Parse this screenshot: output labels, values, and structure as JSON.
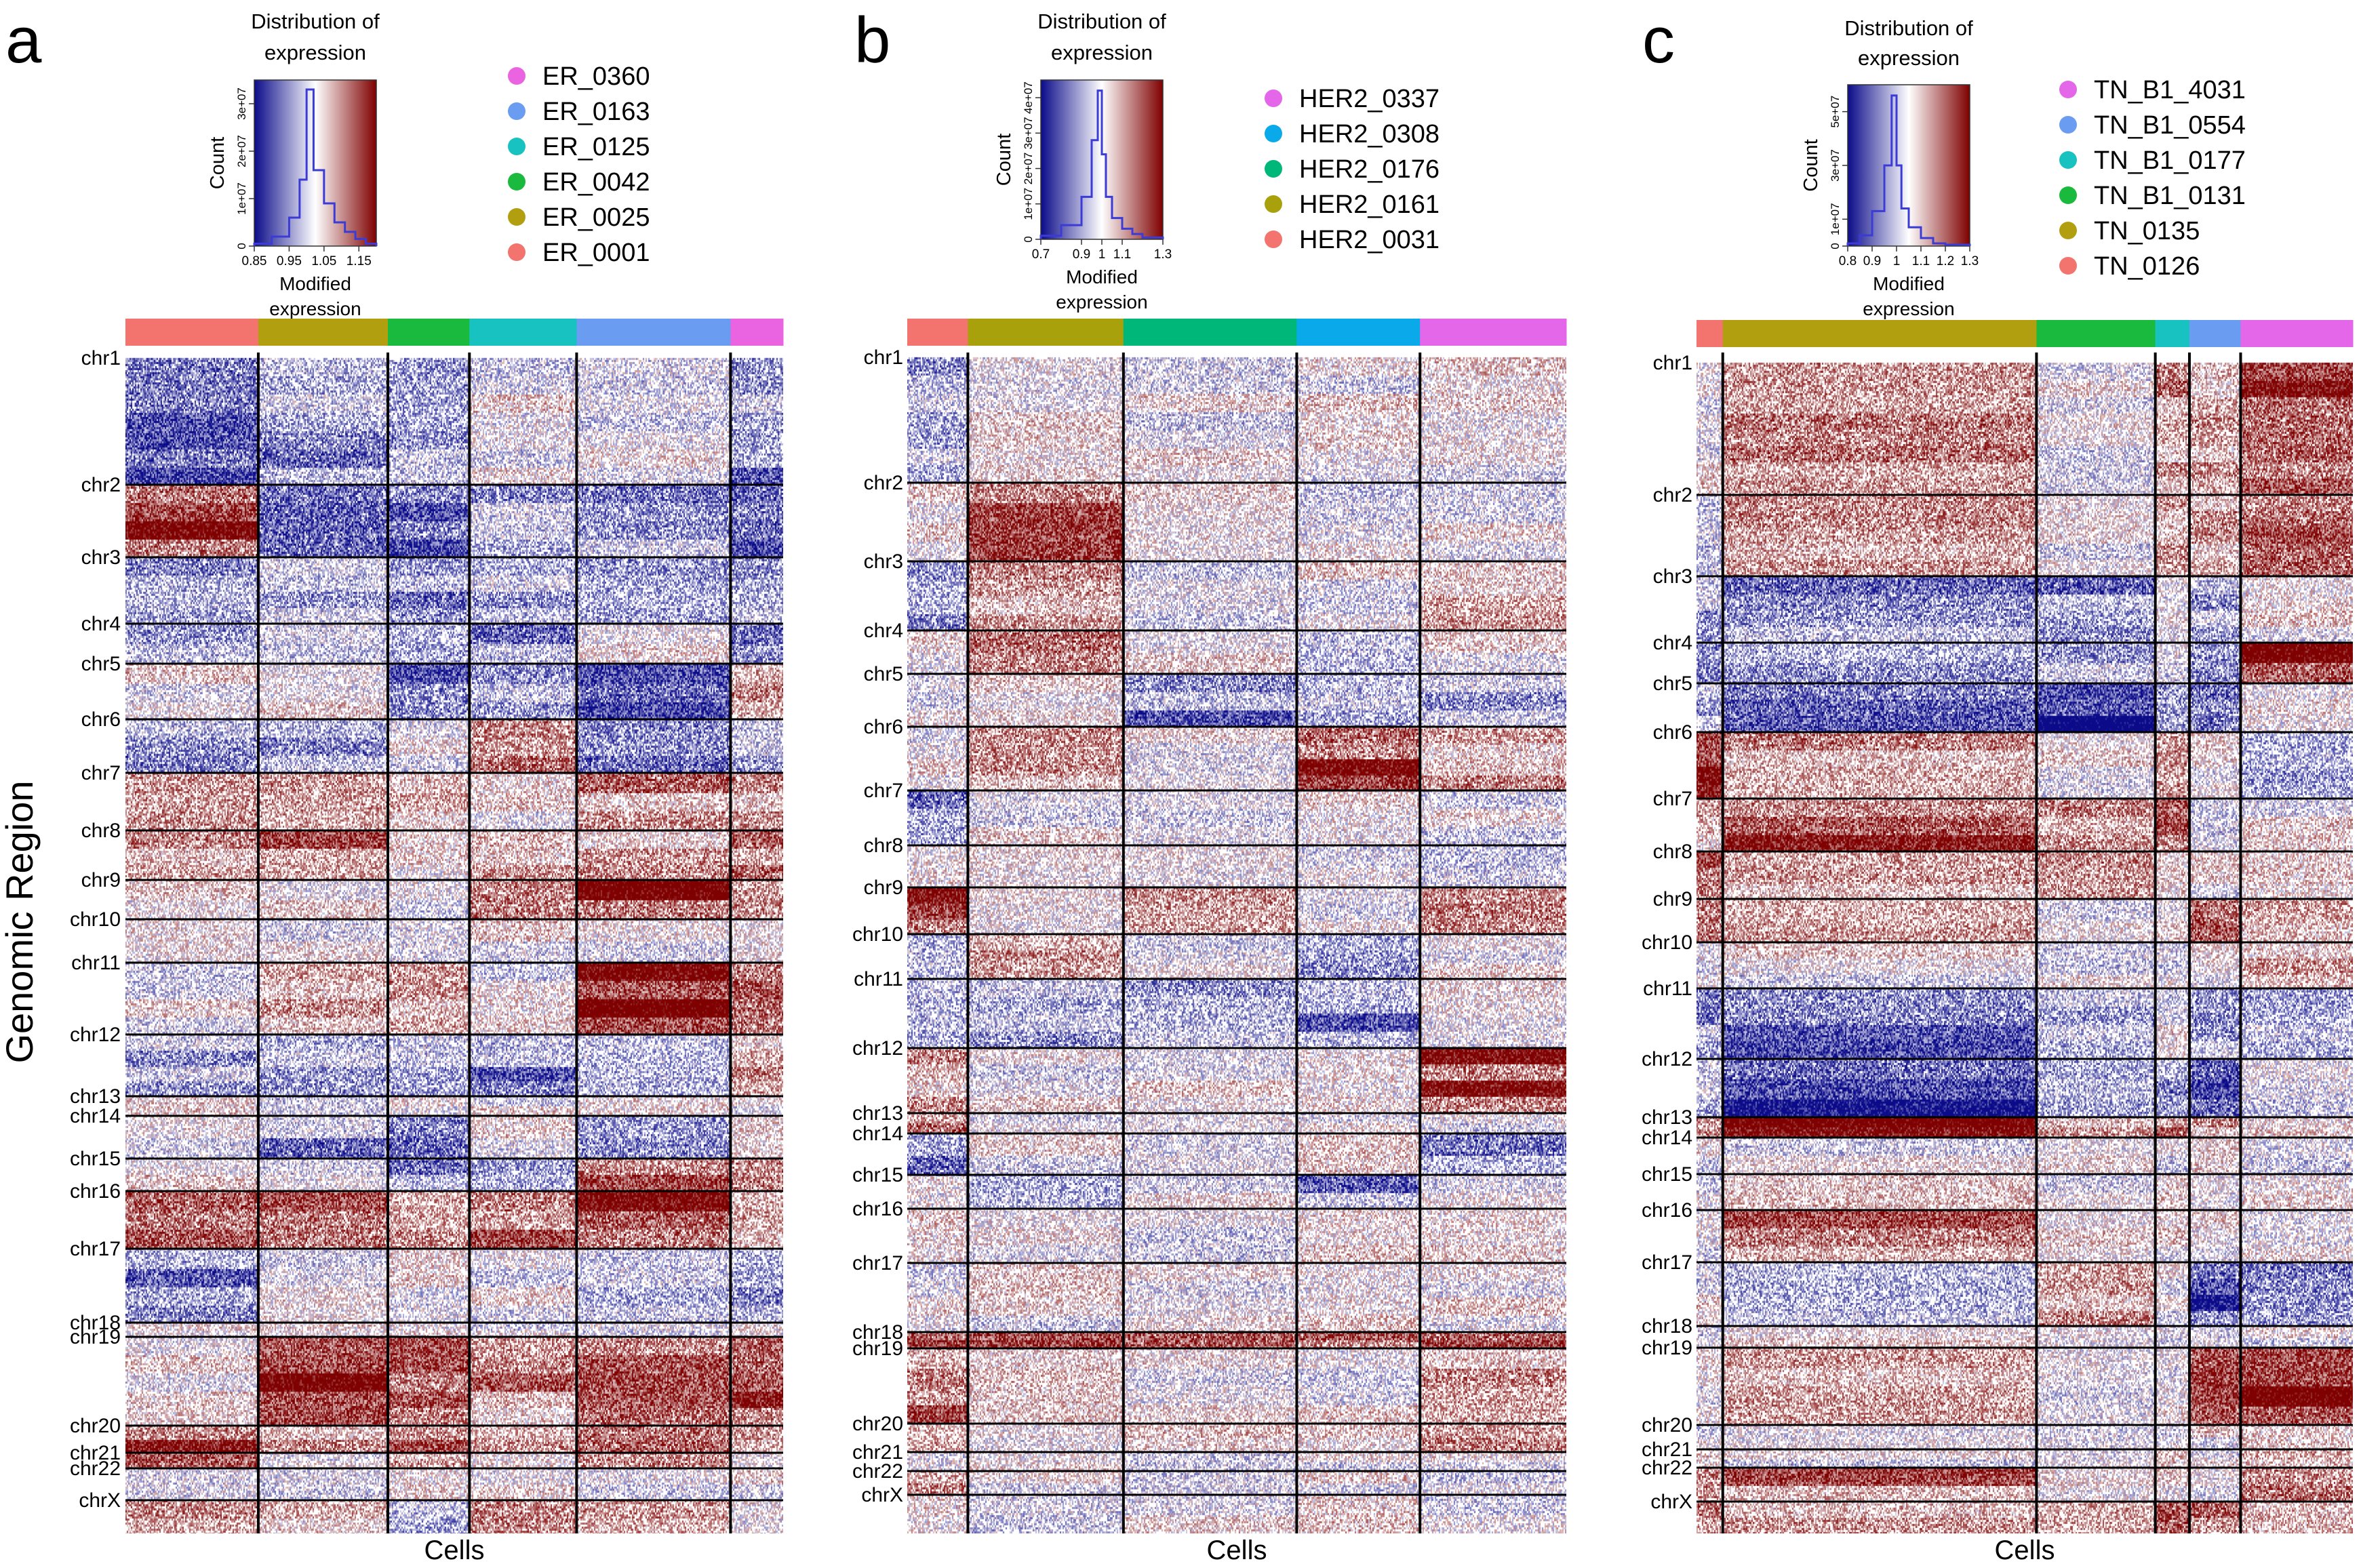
{
  "figure": {
    "y_axis_title": "Genomic Region",
    "x_axis_title": "Cells"
  },
  "colors": {
    "low": "#0b0b8a",
    "mid": "#ffffff",
    "high": "#7f0000",
    "grid": "#000000"
  },
  "chart_data": [
    {
      "type": "heatmap",
      "panel_label": "a",
      "xlabel": "Cells",
      "ylabel": "Genomic Region",
      "chromosomes": [
        "chr1",
        "chr2",
        "chr3",
        "chr4",
        "chr5",
        "chr6",
        "chr7",
        "chr8",
        "chr9",
        "chr10",
        "chr11",
        "chr12",
        "chr13",
        "chr14",
        "chr15",
        "chr16",
        "chr17",
        "chr18",
        "chr19",
        "chr20",
        "chr21",
        "chr22",
        "chrX"
      ],
      "legend": [
        {
          "name": "ER_0360",
          "color": "#ea64e1"
        },
        {
          "name": "ER_0163",
          "color": "#6a9cf2"
        },
        {
          "name": "ER_0125",
          "color": "#17c2c0"
        },
        {
          "name": "ER_0042",
          "color": "#1aba3f"
        },
        {
          "name": "ER_0025",
          "color": "#b29f0f"
        },
        {
          "name": "ER_0001",
          "color": "#f3736e"
        }
      ],
      "cell_groups": [
        {
          "name": "ER_0001",
          "fraction": 0.202
        },
        {
          "name": "ER_0025",
          "fraction": 0.197
        },
        {
          "name": "ER_0042",
          "fraction": 0.124
        },
        {
          "name": "ER_0125",
          "fraction": 0.163
        },
        {
          "name": "ER_0163",
          "fraction": 0.234
        },
        {
          "name": "ER_0360",
          "fraction": 0.08
        }
      ],
      "histogram": {
        "title": "Distribution of expression",
        "xlabel": "Modified expression",
        "ylabel": "Count",
        "x_ticks": [
          "0.85",
          "0.95",
          "1.05",
          "1.15"
        ],
        "y_ticks": [
          "0",
          "1e+07",
          "2e+07",
          "3e+07"
        ],
        "xlim": [
          0.85,
          1.2
        ],
        "ylim": [
          0,
          35000000.0
        ],
        "bins_x": [
          0.85,
          0.9,
          0.95,
          0.98,
          1.0,
          1.02,
          1.05,
          1.08,
          1.11,
          1.14,
          1.17,
          1.2
        ],
        "counts": [
          500000.0,
          2000000.0,
          6000000.0,
          14000000.0,
          33000000.0,
          16000000.0,
          9000000.0,
          5000000.0,
          3000000.0,
          1500000.0,
          500000.0
        ]
      }
    },
    {
      "type": "heatmap",
      "panel_label": "b",
      "xlabel": "Cells",
      "ylabel": "Genomic Region",
      "chromosomes": [
        "chr1",
        "chr2",
        "chr3",
        "chr4",
        "chr5",
        "chr6",
        "chr7",
        "chr8",
        "chr9",
        "chr10",
        "chr11",
        "chr12",
        "chr13",
        "chr14",
        "chr15",
        "chr16",
        "chr17",
        "chr18",
        "chr19",
        "chr20",
        "chr21",
        "chr22",
        "chrX"
      ],
      "legend": [
        {
          "name": "HER2_0337",
          "color": "#e466e9"
        },
        {
          "name": "HER2_0308",
          "color": "#0aa9ea"
        },
        {
          "name": "HER2_0176",
          "color": "#00b77a"
        },
        {
          "name": "HER2_0161",
          "color": "#a9a10c"
        },
        {
          "name": "HER2_0031",
          "color": "#f3736e"
        }
      ],
      "cell_groups": [
        {
          "name": "HER2_0031",
          "fraction": 0.092
        },
        {
          "name": "HER2_0161",
          "fraction": 0.236
        },
        {
          "name": "HER2_0176",
          "fraction": 0.263
        },
        {
          "name": "HER2_0308",
          "fraction": 0.187
        },
        {
          "name": "HER2_0337",
          "fraction": 0.222
        }
      ],
      "histogram": {
        "title": "Distribution of expression",
        "xlabel": "Modified expression",
        "ylabel": "Count",
        "x_ticks": [
          "0.7",
          "0.9",
          "1",
          "1.1",
          "1.3"
        ],
        "y_ticks": [
          "0",
          "1e+07",
          "2e+07",
          "3e+07",
          "4e+07"
        ],
        "xlim": [
          0.7,
          1.3
        ],
        "ylim": [
          0,
          45000000.0
        ],
        "bins_x": [
          0.7,
          0.8,
          0.9,
          0.95,
          0.98,
          1.0,
          1.02,
          1.05,
          1.1,
          1.15,
          1.2,
          1.3
        ],
        "counts": [
          1000000.0,
          4000000.0,
          12000000.0,
          28000000.0,
          42000000.0,
          24000000.0,
          12000000.0,
          6000000.0,
          3000000.0,
          1500000.0,
          500000.0
        ]
      }
    },
    {
      "type": "heatmap",
      "panel_label": "c",
      "xlabel": "Cells",
      "ylabel": "Genomic Region",
      "chromosomes": [
        "chr1",
        "chr2",
        "chr3",
        "chr4",
        "chr5",
        "chr6",
        "chr7",
        "chr8",
        "chr9",
        "chr10",
        "chr11",
        "chr12",
        "chr13",
        "chr14",
        "chr15",
        "chr16",
        "chr17",
        "chr18",
        "chr19",
        "chr20",
        "chr21",
        "chr22",
        "chrX"
      ],
      "legend": [
        {
          "name": "TN_B1_4031",
          "color": "#e466e9"
        },
        {
          "name": "TN_B1_0554",
          "color": "#6a9cf2"
        },
        {
          "name": "TN_B1_0177",
          "color": "#17c2c0"
        },
        {
          "name": "TN_B1_0131",
          "color": "#1aba3f"
        },
        {
          "name": "TN_0135",
          "color": "#b29f0f"
        },
        {
          "name": "TN_0126",
          "color": "#f3736e"
        }
      ],
      "cell_groups": [
        {
          "name": "TN_0126",
          "fraction": 0.04
        },
        {
          "name": "TN_0135",
          "fraction": 0.478
        },
        {
          "name": "TN_B1_0131",
          "fraction": 0.181
        },
        {
          "name": "TN_B1_0177",
          "fraction": 0.052
        },
        {
          "name": "TN_B1_0554",
          "fraction": 0.078
        },
        {
          "name": "TN_B1_4031",
          "fraction": 0.171
        }
      ],
      "histogram": {
        "title": "Distribution of expression",
        "xlabel": "Modified expression",
        "ylabel": "Count",
        "x_ticks": [
          "0.8",
          "0.9",
          "1",
          "1.1",
          "1.2",
          "1.3"
        ],
        "y_ticks": [
          "0",
          "1e+07",
          "3e+07",
          "5e+07"
        ],
        "xlim": [
          0.8,
          1.3
        ],
        "ylim": [
          0,
          60000000.0
        ],
        "bins_x": [
          0.8,
          0.85,
          0.9,
          0.95,
          0.98,
          1.0,
          1.02,
          1.05,
          1.1,
          1.15,
          1.2,
          1.3
        ],
        "counts": [
          1000000.0,
          4000000.0,
          13000000.0,
          30000000.0,
          56000000.0,
          30000000.0,
          14000000.0,
          7000000.0,
          3000000.0,
          1000000.0,
          500000.0
        ]
      }
    }
  ]
}
